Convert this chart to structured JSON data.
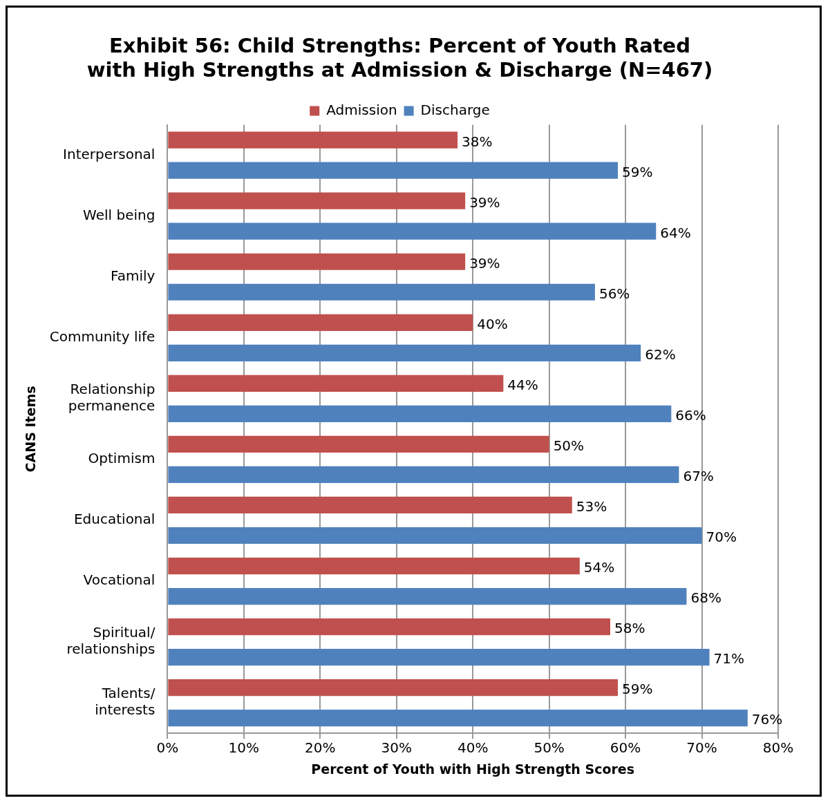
{
  "chart_data": {
    "type": "bar",
    "orientation": "horizontal",
    "title": "Exhibit 56: Child Strengths: Percent of Youth Rated with High Strengths at Admission & Discharge (N=467)",
    "xlabel": "Percent of Youth with High Strength Scores",
    "ylabel": "CANS Items",
    "categories": [
      "Interpersonal",
      "Well being",
      "Family",
      "Community life",
      "Relationship permanence",
      "Optimism",
      "Educational",
      "Vocational",
      "Spiritual/ relationships",
      "Talents/ interests"
    ],
    "series": [
      {
        "name": "Admission",
        "color": "#c0504d",
        "values": [
          38,
          39,
          39,
          40,
          44,
          50,
          53,
          54,
          58,
          59
        ],
        "value_labels": [
          "38%",
          "39%",
          "39%",
          "40%",
          "44%",
          "50%",
          "53%",
          "54%",
          "58%",
          "59%"
        ]
      },
      {
        "name": "Discharge",
        "color": "#4f81bd",
        "values": [
          59,
          64,
          56,
          62,
          66,
          67,
          70,
          68,
          71,
          76
        ],
        "value_labels": [
          "59%",
          "64%",
          "56%",
          "62%",
          "66%",
          "67%",
          "70%",
          "68%",
          "71%",
          "76%"
        ]
      }
    ],
    "xlim": [
      0,
      80
    ],
    "xticks": [
      {
        "value": 0,
        "label": "0%"
      },
      {
        "value": 10,
        "label": "10%"
      },
      {
        "value": 20,
        "label": "20%"
      },
      {
        "value": 30,
        "label": "30%"
      },
      {
        "value": 40,
        "label": "40%"
      },
      {
        "value": 50,
        "label": "50%"
      },
      {
        "value": 60,
        "label": "60%"
      },
      {
        "value": 70,
        "label": "70%"
      },
      {
        "value": 80,
        "label": "80%"
      }
    ],
    "grid": "x",
    "legend": "top"
  }
}
